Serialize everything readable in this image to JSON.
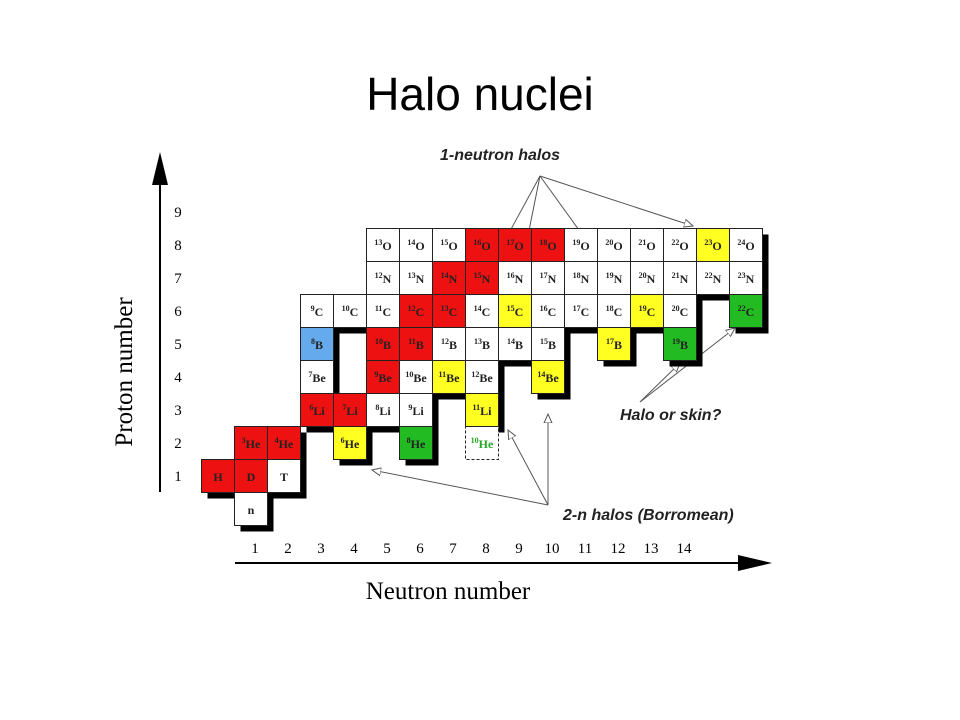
{
  "header": {
    "title": "Halo nuclei"
  },
  "axes": {
    "y_label": "Proton number",
    "x_label": "Neutron number",
    "y_ticks": [
      "1",
      "2",
      "3",
      "4",
      "5",
      "6",
      "7",
      "8",
      "9"
    ],
    "x_ticks": [
      "1",
      "2",
      "3",
      "4",
      "5",
      "6",
      "7",
      "8",
      "9",
      "10",
      "11",
      "12",
      "13",
      "14"
    ]
  },
  "annotations": {
    "one_neutron": "1-neutron halos",
    "two_neutron": "2-n halos (Borromean)",
    "halo_or_skin": "Halo or skin?"
  },
  "cells": [
    {
      "symbol": "n",
      "color": "#ffffff"
    },
    {
      "symbol": "H",
      "color": "#ee1111"
    },
    {
      "symbol": "D",
      "color": "#ee1111"
    },
    {
      "symbol": "T",
      "color": "#ffffff"
    },
    {
      "mass": "3",
      "symbol": "He",
      "color": "#ee1111"
    },
    {
      "mass": "4",
      "symbol": "He",
      "color": "#ee1111"
    },
    {
      "mass": "6",
      "symbol": "He",
      "color": "#ffff22"
    },
    {
      "mass": "8",
      "symbol": "He",
      "color": "#22bb22"
    },
    {
      "mass": "10",
      "symbol": "He",
      "color": "#ffffff",
      "text_color": "#22aa22",
      "dashed": true
    },
    {
      "mass": "6",
      "symbol": "Li",
      "color": "#ee1111"
    },
    {
      "mass": "7",
      "symbol": "Li",
      "color": "#ee1111"
    },
    {
      "mass": "8",
      "symbol": "Li",
      "color": "#ffffff"
    },
    {
      "mass": "9",
      "symbol": "Li",
      "color": "#ffffff"
    },
    {
      "mass": "11",
      "symbol": "Li",
      "color": "#ffff22"
    },
    {
      "mass": "7",
      "symbol": "Be",
      "color": "#ffffff"
    },
    {
      "mass": "9",
      "symbol": "Be",
      "color": "#ee1111"
    },
    {
      "mass": "10",
      "symbol": "Be",
      "color": "#ffffff"
    },
    {
      "mass": "11",
      "symbol": "Be",
      "color": "#ffff22"
    },
    {
      "mass": "12",
      "symbol": "Be",
      "color": "#ffffff"
    },
    {
      "mass": "14",
      "symbol": "Be",
      "color": "#ffff22"
    },
    {
      "mass": "8",
      "symbol": "B",
      "color": "#66aaee"
    },
    {
      "mass": "10",
      "symbol": "B",
      "color": "#ee1111"
    },
    {
      "mass": "11",
      "symbol": "B",
      "color": "#ee1111"
    },
    {
      "mass": "12",
      "symbol": "B",
      "color": "#ffffff"
    },
    {
      "mass": "13",
      "symbol": "B",
      "color": "#ffffff"
    },
    {
      "mass": "14",
      "symbol": "B",
      "color": "#ffffff"
    },
    {
      "mass": "15",
      "symbol": "B",
      "color": "#ffffff"
    },
    {
      "mass": "17",
      "symbol": "B",
      "color": "#ffff22"
    },
    {
      "mass": "19",
      "symbol": "B",
      "color": "#22bb22"
    },
    {
      "mass": "9",
      "symbol": "C",
      "color": "#ffffff"
    },
    {
      "mass": "10",
      "symbol": "C",
      "color": "#ffffff"
    },
    {
      "mass": "11",
      "symbol": "C",
      "color": "#ffffff"
    },
    {
      "mass": "12",
      "symbol": "C",
      "color": "#ee1111"
    },
    {
      "mass": "13",
      "symbol": "C",
      "color": "#ee1111"
    },
    {
      "mass": "14",
      "symbol": "C",
      "color": "#ffffff"
    },
    {
      "mass": "15",
      "symbol": "C",
      "color": "#ffff22"
    },
    {
      "mass": "16",
      "symbol": "C",
      "color": "#ffffff"
    },
    {
      "mass": "17",
      "symbol": "C",
      "color": "#ffffff"
    },
    {
      "mass": "18",
      "symbol": "C",
      "color": "#ffffff"
    },
    {
      "mass": "19",
      "symbol": "C",
      "color": "#ffff22"
    },
    {
      "mass": "20",
      "symbol": "C",
      "color": "#ffffff"
    },
    {
      "mass": "22",
      "symbol": "C",
      "color": "#22bb22"
    },
    {
      "mass": "12",
      "symbol": "N",
      "color": "#ffffff"
    },
    {
      "mass": "13",
      "symbol": "N",
      "color": "#ffffff"
    },
    {
      "mass": "14",
      "symbol": "N",
      "color": "#ee1111"
    },
    {
      "mass": "15",
      "symbol": "N",
      "color": "#ee1111"
    },
    {
      "mass": "16",
      "symbol": "N",
      "color": "#ffffff"
    },
    {
      "mass": "17",
      "symbol": "N",
      "color": "#ffffff"
    },
    {
      "mass": "18",
      "symbol": "N",
      "color": "#ffffff"
    },
    {
      "mass": "19",
      "symbol": "N",
      "color": "#ffffff"
    },
    {
      "mass": "20",
      "symbol": "N",
      "color": "#ffffff"
    },
    {
      "mass": "21",
      "symbol": "N",
      "color": "#ffffff"
    },
    {
      "mass": "22",
      "symbol": "N",
      "color": "#ffffff"
    },
    {
      "mass": "23",
      "symbol": "N",
      "color": "#ffffff"
    },
    {
      "mass": "13",
      "symbol": "O",
      "color": "#ffffff"
    },
    {
      "mass": "14",
      "symbol": "O",
      "color": "#ffffff"
    },
    {
      "mass": "15",
      "symbol": "O",
      "color": "#ffffff"
    },
    {
      "mass": "16",
      "symbol": "O",
      "color": "#ee1111"
    },
    {
      "mass": "17",
      "symbol": "O",
      "color": "#ee1111"
    },
    {
      "mass": "18",
      "symbol": "O",
      "color": "#ee1111"
    },
    {
      "mass": "19",
      "symbol": "O",
      "color": "#ffffff"
    },
    {
      "mass": "20",
      "symbol": "O",
      "color": "#ffffff"
    },
    {
      "mass": "21",
      "symbol": "O",
      "color": "#ffffff"
    },
    {
      "mass": "22",
      "symbol": "O",
      "color": "#ffffff"
    },
    {
      "mass": "23",
      "symbol": "O",
      "color": "#ffff22"
    },
    {
      "mass": "24",
      "symbol": "O",
      "color": "#ffffff"
    }
  ]
}
